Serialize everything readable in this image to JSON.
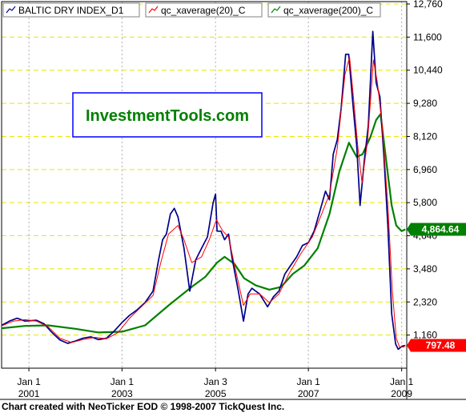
{
  "chart_data": {
    "type": "line",
    "title": "",
    "xlabel": "",
    "ylabel": "",
    "ylim": [
      0,
      12760
    ],
    "xlim": [
      "2000-06-01",
      "2009-02-10"
    ],
    "grid": true,
    "legend_placement": "top-left",
    "watermark": "InvestmentTools.com",
    "y_ticks": [
      "1,160",
      "2,320",
      "3,480",
      "4,640",
      "5,800",
      "6,960",
      "8,120",
      "9,280",
      "10,440",
      "11,600",
      "12,760"
    ],
    "y_tick_values": [
      1160,
      2320,
      3480,
      4640,
      5800,
      6960,
      8120,
      9280,
      10440,
      11600,
      12760
    ],
    "x_ticks": [
      {
        "date": "2001-01-01",
        "line1": "Jan 1",
        "line2": "2001"
      },
      {
        "date": "2003-01-01",
        "line1": "Jan 1",
        "line2": "2003"
      },
      {
        "date": "2005-01-03",
        "line1": "Jan 3",
        "line2": "2005"
      },
      {
        "date": "2007-01-01",
        "line1": "Jan 1",
        "line2": "2007"
      },
      {
        "date": "2009-01-01",
        "line1": "Jan 1",
        "line2": "2009"
      }
    ],
    "series": [
      {
        "name": "BALTIC DRY INDEX_D1",
        "color": "#00008b",
        "points": [
          [
            "2000-06-01",
            1500
          ],
          [
            "2000-08-01",
            1650
          ],
          [
            "2000-10-01",
            1750
          ],
          [
            "2000-12-01",
            1650
          ],
          [
            "2001-03-01",
            1680
          ],
          [
            "2001-05-01",
            1550
          ],
          [
            "2001-07-01",
            1250
          ],
          [
            "2001-09-01",
            990
          ],
          [
            "2001-11-01",
            870
          ],
          [
            "2002-01-01",
            950
          ],
          [
            "2002-03-01",
            1050
          ],
          [
            "2002-05-01",
            1100
          ],
          [
            "2002-07-01",
            1000
          ],
          [
            "2002-09-01",
            1050
          ],
          [
            "2002-11-01",
            1300
          ],
          [
            "2003-01-01",
            1600
          ],
          [
            "2003-03-01",
            1850
          ],
          [
            "2003-05-01",
            2050
          ],
          [
            "2003-07-01",
            2300
          ],
          [
            "2003-09-01",
            2700
          ],
          [
            "2003-10-15",
            3800
          ],
          [
            "2003-11-15",
            4500
          ],
          [
            "2003-12-15",
            4700
          ],
          [
            "2004-01-15",
            5400
          ],
          [
            "2004-02-15",
            5600
          ],
          [
            "2004-03-15",
            5300
          ],
          [
            "2004-05-01",
            4200
          ],
          [
            "2004-06-15",
            2700
          ],
          [
            "2004-08-01",
            3800
          ],
          [
            "2004-09-15",
            4200
          ],
          [
            "2004-11-01",
            4600
          ],
          [
            "2004-12-15",
            5800
          ],
          [
            "2005-01-03",
            6100
          ],
          [
            "2005-01-15",
            4800
          ],
          [
            "2005-02-15",
            4800
          ],
          [
            "2005-03-15",
            4500
          ],
          [
            "2005-04-15",
            4700
          ],
          [
            "2005-05-15",
            3800
          ],
          [
            "2005-07-01",
            2700
          ],
          [
            "2005-08-10",
            1650
          ],
          [
            "2005-09-15",
            2600
          ],
          [
            "2005-10-15",
            2800
          ],
          [
            "2005-12-15",
            2600
          ],
          [
            "2006-02-15",
            2150
          ],
          [
            "2006-04-01",
            2500
          ],
          [
            "2006-05-15",
            2700
          ],
          [
            "2006-07-01",
            3300
          ],
          [
            "2006-08-15",
            3600
          ],
          [
            "2006-10-01",
            3900
          ],
          [
            "2006-11-15",
            4300
          ],
          [
            "2007-01-01",
            4400
          ],
          [
            "2007-02-15",
            4800
          ],
          [
            "2007-04-01",
            5500
          ],
          [
            "2007-05-15",
            6200
          ],
          [
            "2007-06-15",
            5900
          ],
          [
            "2007-07-15",
            7500
          ],
          [
            "2007-08-15",
            8000
          ],
          [
            "2007-09-15",
            9100
          ],
          [
            "2007-10-20",
            11000
          ],
          [
            "2007-11-13",
            11000
          ],
          [
            "2007-12-15",
            9300
          ],
          [
            "2008-01-15",
            7800
          ],
          [
            "2008-02-10",
            5700
          ],
          [
            "2008-03-15",
            7300
          ],
          [
            "2008-04-15",
            8500
          ],
          [
            "2008-05-20",
            11800
          ],
          [
            "2008-06-15",
            10000
          ],
          [
            "2008-07-15",
            9500
          ],
          [
            "2008-08-15",
            7400
          ],
          [
            "2008-09-15",
            5000
          ],
          [
            "2008-10-15",
            1900
          ],
          [
            "2008-11-15",
            850
          ],
          [
            "2008-12-05",
            663
          ],
          [
            "2009-01-05",
            774
          ],
          [
            "2009-01-30",
            797
          ]
        ]
      },
      {
        "name": "qc_xaverage(20)_C",
        "color": "#ff0000",
        "points": [
          [
            "2000-06-01",
            1480
          ],
          [
            "2000-09-01",
            1650
          ],
          [
            "2000-12-01",
            1700
          ],
          [
            "2001-03-01",
            1650
          ],
          [
            "2001-06-01",
            1450
          ],
          [
            "2001-09-01",
            1050
          ],
          [
            "2001-12-01",
            900
          ],
          [
            "2002-03-01",
            1000
          ],
          [
            "2002-06-01",
            1080
          ],
          [
            "2002-09-01",
            1030
          ],
          [
            "2002-12-01",
            1250
          ],
          [
            "2003-03-01",
            1750
          ],
          [
            "2003-06-01",
            2150
          ],
          [
            "2003-09-01",
            2550
          ],
          [
            "2003-11-01",
            3700
          ],
          [
            "2004-01-01",
            4700
          ],
          [
            "2004-03-15",
            5000
          ],
          [
            "2004-05-01",
            4500
          ],
          [
            "2004-07-01",
            3700
          ],
          [
            "2004-09-15",
            3900
          ],
          [
            "2004-11-15",
            4500
          ],
          [
            "2005-01-10",
            5200
          ],
          [
            "2005-03-01",
            4800
          ],
          [
            "2005-04-15",
            4600
          ],
          [
            "2005-06-01",
            3600
          ],
          [
            "2005-08-10",
            2200
          ],
          [
            "2005-10-01",
            2600
          ],
          [
            "2005-12-15",
            2600
          ],
          [
            "2006-03-01",
            2300
          ],
          [
            "2006-05-15",
            2600
          ],
          [
            "2006-08-01",
            3300
          ],
          [
            "2006-11-01",
            4000
          ],
          [
            "2007-02-01",
            4600
          ],
          [
            "2007-04-15",
            5400
          ],
          [
            "2007-06-15",
            6100
          ],
          [
            "2007-08-15",
            7700
          ],
          [
            "2007-10-15",
            10300
          ],
          [
            "2007-11-20",
            10900
          ],
          [
            "2007-12-20",
            9500
          ],
          [
            "2008-01-25",
            7700
          ],
          [
            "2008-02-25",
            6500
          ],
          [
            "2008-04-10",
            8000
          ],
          [
            "2008-05-25",
            10800
          ],
          [
            "2008-06-25",
            10000
          ],
          [
            "2008-08-01",
            8500
          ],
          [
            "2008-09-15",
            5700
          ],
          [
            "2008-10-20",
            2700
          ],
          [
            "2008-11-20",
            1050
          ],
          [
            "2008-12-15",
            750
          ],
          [
            "2009-01-15",
            740
          ],
          [
            "2009-01-30",
            797
          ]
        ]
      },
      {
        "name": "qc_xaverage(200)_C",
        "color": "#008000",
        "points": [
          [
            "2000-06-01",
            1400
          ],
          [
            "2000-12-01",
            1480
          ],
          [
            "2001-06-01",
            1500
          ],
          [
            "2002-01-01",
            1380
          ],
          [
            "2002-07-01",
            1250
          ],
          [
            "2003-01-01",
            1280
          ],
          [
            "2003-07-01",
            1500
          ],
          [
            "2004-01-01",
            2200
          ],
          [
            "2004-07-01",
            2850
          ],
          [
            "2004-10-15",
            3200
          ],
          [
            "2005-01-15",
            3700
          ],
          [
            "2005-03-15",
            3900
          ],
          [
            "2005-06-01",
            3650
          ],
          [
            "2005-08-15",
            3150
          ],
          [
            "2005-11-15",
            2900
          ],
          [
            "2006-03-01",
            2750
          ],
          [
            "2006-06-01",
            2850
          ],
          [
            "2006-09-01",
            3300
          ],
          [
            "2006-12-01",
            3600
          ],
          [
            "2007-03-15",
            4200
          ],
          [
            "2007-06-15",
            5400
          ],
          [
            "2007-09-01",
            6900
          ],
          [
            "2007-11-15",
            7900
          ],
          [
            "2008-01-15",
            7400
          ],
          [
            "2008-03-01",
            7500
          ],
          [
            "2008-05-01",
            8100
          ],
          [
            "2008-06-15",
            8700
          ],
          [
            "2008-07-20",
            8900
          ],
          [
            "2008-09-01",
            7300
          ],
          [
            "2008-10-15",
            5700
          ],
          [
            "2008-11-20",
            5000
          ],
          [
            "2009-01-01",
            4800
          ],
          [
            "2009-01-30",
            4864.64
          ]
        ]
      }
    ],
    "last_value_tags": [
      {
        "series": "qc_xaverage(200)_C",
        "value": 4864.64,
        "label": "4,864.64",
        "color": "#008000"
      },
      {
        "series": "BALTIC DRY INDEX_D1",
        "value": 797.48,
        "label": "797.48",
        "color": "#ff0000"
      }
    ]
  },
  "footer": "Chart created with NeoTicker EOD © 1998-2007 TickQuest Inc."
}
